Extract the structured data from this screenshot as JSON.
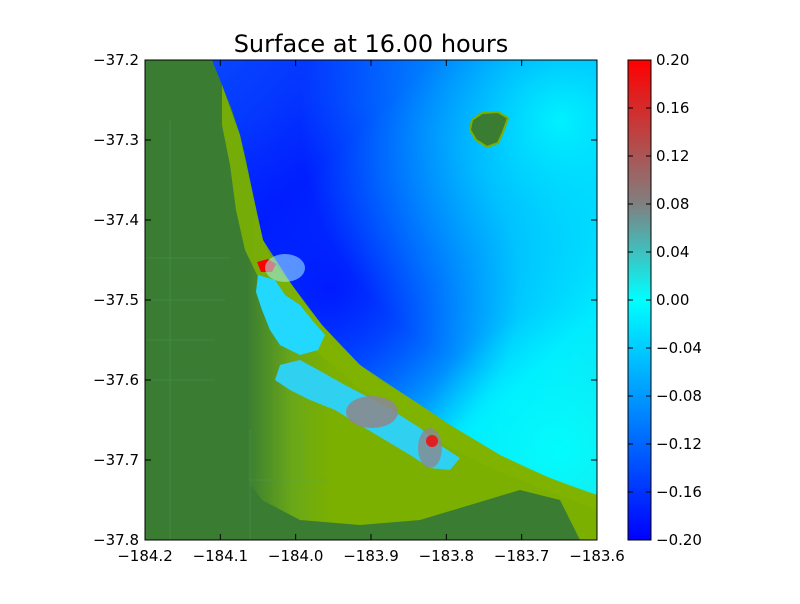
{
  "chart_data": {
    "type": "heatmap",
    "title": "Surface at 16.00 hours",
    "xlabel": "",
    "ylabel": "",
    "xlim": [
      -184.2,
      -183.6
    ],
    "ylim": [
      -37.8,
      -37.2
    ],
    "x_ticks": [
      -184.2,
      -184.1,
      -184.0,
      -183.9,
      -183.8,
      -183.7,
      -183.6
    ],
    "x_tick_labels": [
      "−184.2",
      "−184.1",
      "−184.0",
      "−183.9",
      "−183.8",
      "−183.7",
      "−183.6"
    ],
    "y_ticks": [
      -37.2,
      -37.3,
      -37.4,
      -37.5,
      -37.6,
      -37.7,
      -37.8
    ],
    "y_tick_labels": [
      "−37.2",
      "−37.3",
      "−37.4",
      "−37.5",
      "−37.6",
      "−37.7",
      "−37.8"
    ],
    "colorbar": {
      "range": [
        -0.2,
        0.2
      ],
      "ticks": [
        0.2,
        0.16,
        0.12,
        0.08,
        0.04,
        0.0,
        -0.04,
        -0.08,
        -0.12,
        -0.16,
        -0.2
      ],
      "tick_labels": [
        "0.20",
        "0.16",
        "0.12",
        "0.08",
        "0.04",
        "0.00",
        "−0.04",
        "−0.08",
        "−0.12",
        "−0.16",
        "−0.20"
      ],
      "colors": [
        "#0000ff",
        "#00ffff",
        "#808080",
        "#ff0000"
      ]
    },
    "land_colors": [
      "#3a7d32",
      "#7bb000"
    ],
    "water_dominant_values": {
      "offshore_minimum_region": -0.16,
      "north_east_region": 0.02,
      "harbour_local_maximum": 0.2
    },
    "grid": false
  }
}
